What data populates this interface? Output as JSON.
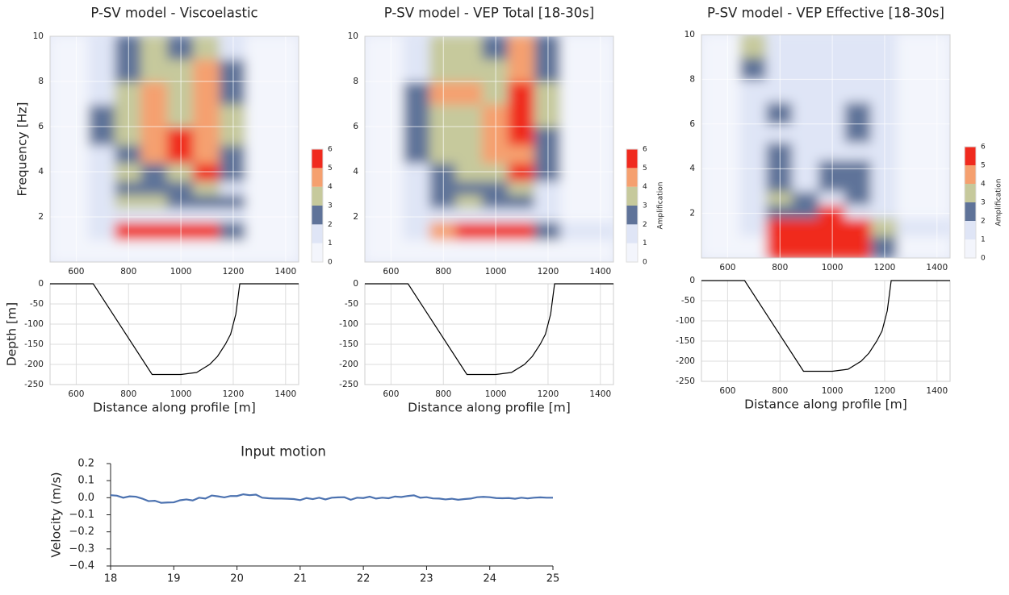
{
  "chart_data": [
    {
      "type": "heatmap",
      "title": "P-SV model - Viscoelastic",
      "ylabel": "Frequency [Hz]",
      "x_bins": [
        500,
        650,
        750,
        850,
        950,
        1050,
        1150,
        1250,
        1450
      ],
      "y_bins": [
        0,
        1,
        1.8,
        2.4,
        3,
        3.6,
        4.4,
        5.2,
        6,
        7,
        8,
        9,
        10
      ],
      "z": [
        [
          0.5,
          0.5,
          0.8,
          0.8,
          0.8,
          0.8,
          0.6,
          0.5
        ],
        [
          0.8,
          1.5,
          5.5,
          6,
          6,
          5.5,
          2,
          0.8
        ],
        [
          0.7,
          1,
          1.5,
          1.5,
          1.5,
          1.5,
          1,
          0.7
        ],
        [
          0.7,
          1,
          3,
          3.5,
          2,
          2.5,
          2.5,
          0.7
        ],
        [
          0.7,
          1,
          2,
          2,
          2.5,
          3,
          1.5,
          0.7
        ],
        [
          0.7,
          1.5,
          3,
          2.5,
          3.5,
          5.5,
          2.5,
          0.7
        ],
        [
          0.7,
          1.5,
          2.5,
          4,
          5,
          4.5,
          2,
          0.7
        ],
        [
          0.7,
          2,
          3,
          4,
          5.5,
          4,
          3,
          0.7
        ],
        [
          0.7,
          2,
          3.5,
          4,
          3.5,
          4.5,
          3,
          0.7
        ],
        [
          0.7,
          1.5,
          3,
          4.5,
          3,
          4,
          2.5,
          0.7
        ],
        [
          0.7,
          1,
          2.5,
          3.5,
          3,
          4,
          2,
          0.7
        ],
        [
          0.7,
          1,
          2,
          3,
          2.5,
          3.5,
          1.5,
          0.7
        ]
      ],
      "xlim": [
        500,
        1450
      ],
      "ylim": [
        0,
        10
      ],
      "xticks": [
        600,
        800,
        1000,
        1200,
        1400
      ],
      "yticks": [
        2,
        4,
        6,
        8,
        10
      ],
      "colorbar": {
        "ticks": [
          0,
          1,
          2,
          3,
          4,
          5,
          6
        ],
        "colors": [
          "#f3f5fc",
          "#dfe5f6",
          "#5f7399",
          "#c6c99c",
          "#f5a06f",
          "#f02a1e"
        ]
      }
    },
    {
      "type": "line",
      "ylabel": "Depth [m]",
      "xlabel": "Distance along profile [m]",
      "x": [
        500,
        665,
        890,
        1000,
        1060,
        1110,
        1140,
        1170,
        1190,
        1200,
        1210,
        1215,
        1220,
        1225,
        1450
      ],
      "values": [
        0,
        0,
        -225,
        -225,
        -220,
        -200,
        -180,
        -150,
        -125,
        -100,
        -75,
        -50,
        -25,
        0,
        0
      ],
      "color": "#000000",
      "xlim": [
        500,
        1450
      ],
      "ylim": [
        -250,
        0
      ],
      "xticks": [
        600,
        800,
        1000,
        1200,
        1400
      ],
      "yticks": [
        0,
        -50,
        -100,
        -150,
        -200,
        -250
      ],
      "grid": true
    },
    {
      "type": "heatmap",
      "title": "P-SV model - VEP Total [18-30s]",
      "x_bins": [
        500,
        650,
        750,
        850,
        950,
        1050,
        1150,
        1250,
        1450
      ],
      "y_bins": [
        0,
        1,
        1.8,
        2.4,
        3,
        3.6,
        4.4,
        5.2,
        6,
        7,
        8,
        9,
        10
      ],
      "z": [
        [
          0.5,
          0.5,
          0.8,
          0.8,
          0.8,
          0.8,
          0.8,
          0.6
        ],
        [
          0.8,
          1.5,
          4.5,
          5.5,
          5.5,
          5,
          2,
          1.2
        ],
        [
          0.7,
          1,
          1.5,
          1.5,
          1.5,
          1.5,
          1,
          0.7
        ],
        [
          0.7,
          1.5,
          2.5,
          3,
          2.5,
          2.5,
          1.5,
          0.7
        ],
        [
          0.7,
          1.5,
          2,
          2.5,
          2.5,
          3.5,
          1.5,
          0.7
        ],
        [
          0.7,
          1.5,
          2.5,
          3,
          3.5,
          5,
          2,
          0.7
        ],
        [
          0.7,
          2,
          3,
          3.5,
          4,
          4.5,
          2,
          0.7
        ],
        [
          0.7,
          2,
          3,
          3.5,
          4,
          5,
          2.5,
          0.7
        ],
        [
          0.7,
          2,
          3.5,
          3.5,
          4,
          5.5,
          3,
          0.7
        ],
        [
          0.7,
          2,
          4,
          4.5,
          3.5,
          5,
          3,
          0.7
        ],
        [
          0.7,
          1.5,
          3.5,
          3.5,
          3,
          4.5,
          2.5,
          0.7
        ],
        [
          0.7,
          1.5,
          3,
          3,
          2.5,
          4,
          2,
          0.7
        ]
      ],
      "xlim": [
        500,
        1450
      ],
      "ylim": [
        0,
        10
      ],
      "xticks": [
        600,
        800,
        1000,
        1200,
        1400
      ],
      "yticks": [
        2,
        4,
        6,
        8,
        10
      ],
      "colorbar": {
        "ticks": [
          0,
          1,
          2,
          3,
          4,
          5,
          6
        ],
        "colors": [
          "#f3f5fc",
          "#dfe5f6",
          "#5f7399",
          "#c6c99c",
          "#f5a06f",
          "#f02a1e"
        ],
        "label": "Amplification"
      }
    },
    {
      "type": "line",
      "xlabel": "Distance along profile [m]",
      "x": [
        500,
        665,
        890,
        1000,
        1060,
        1110,
        1140,
        1170,
        1190,
        1200,
        1210,
        1215,
        1220,
        1225,
        1450
      ],
      "values": [
        0,
        0,
        -225,
        -225,
        -220,
        -200,
        -180,
        -150,
        -125,
        -100,
        -75,
        -50,
        -25,
        0,
        0
      ],
      "color": "#000000",
      "xlim": [
        500,
        1450
      ],
      "ylim": [
        -250,
        0
      ],
      "xticks": [
        600,
        800,
        1000,
        1200,
        1400
      ],
      "yticks": [
        0,
        -50,
        -100,
        -150,
        -200,
        -250
      ],
      "grid": true
    },
    {
      "type": "heatmap",
      "title": "P-SV model - VEP Effective [18-30s]",
      "x_bins": [
        500,
        650,
        750,
        850,
        950,
        1050,
        1150,
        1250,
        1450
      ],
      "y_bins": [
        0,
        1,
        1.8,
        2.4,
        3,
        3.6,
        4.4,
        5.2,
        6,
        7,
        8,
        9,
        10
      ],
      "z": [
        [
          0.5,
          0.5,
          5,
          5.5,
          6,
          5.5,
          2,
          0.5
        ],
        [
          0.5,
          1.5,
          5.5,
          5.5,
          5,
          5.5,
          3,
          1
        ],
        [
          0.5,
          1,
          2,
          2,
          5.5,
          1.5,
          1.5,
          0.5
        ],
        [
          0.5,
          1,
          3,
          2,
          1.5,
          2,
          1,
          0.5
        ],
        [
          0.5,
          1,
          2,
          1.5,
          2,
          2.5,
          1.5,
          0.5
        ],
        [
          0.5,
          1.5,
          2,
          1.5,
          2,
          2,
          1.5,
          0.5
        ],
        [
          0.5,
          1.5,
          2,
          1,
          1,
          1.5,
          1.5,
          0.5
        ],
        [
          0.5,
          1.5,
          1.5,
          1,
          1,
          2,
          1.5,
          0.5
        ],
        [
          0.5,
          1.5,
          2,
          1,
          1,
          2.5,
          1,
          0.5
        ],
        [
          0.5,
          1.5,
          1.5,
          1,
          1,
          1.5,
          1,
          0.5
        ],
        [
          0.5,
          2,
          1.5,
          1,
          1,
          1,
          1,
          0.5
        ],
        [
          0.5,
          3.5,
          1.5,
          1,
          1,
          1,
          1,
          0.5
        ]
      ],
      "xlim": [
        500,
        1450
      ],
      "ylim": [
        0,
        10
      ],
      "xticks": [
        600,
        800,
        1000,
        1200,
        1400
      ],
      "yticks": [
        2,
        4,
        6,
        8,
        10
      ],
      "colorbar": {
        "ticks": [
          0,
          1,
          2,
          3,
          4,
          5,
          6
        ],
        "colors": [
          "#f3f5fc",
          "#dfe5f6",
          "#5f7399",
          "#c6c99c",
          "#f5a06f",
          "#f02a1e"
        ],
        "label": "Amplification"
      }
    },
    {
      "type": "line",
      "xlabel": "Distance along profile [m]",
      "x": [
        500,
        665,
        890,
        1000,
        1060,
        1110,
        1140,
        1170,
        1190,
        1200,
        1210,
        1215,
        1220,
        1225,
        1450
      ],
      "values": [
        0,
        0,
        -225,
        -225,
        -220,
        -200,
        -180,
        -150,
        -125,
        -100,
        -75,
        -50,
        -25,
        0,
        0
      ],
      "color": "#000000",
      "xlim": [
        500,
        1450
      ],
      "ylim": [
        -250,
        0
      ],
      "xticks": [
        600,
        800,
        1000,
        1200,
        1400
      ],
      "yticks": [
        0,
        -50,
        -100,
        -150,
        -200,
        -250
      ],
      "grid": true
    },
    {
      "type": "line",
      "title": "Input motion",
      "ylabel": "Velocity (m/s)",
      "x": [
        18,
        18.1,
        18.2,
        18.3,
        18.4,
        18.5,
        18.6,
        18.7,
        18.8,
        18.9,
        19,
        19.1,
        19.2,
        19.3,
        19.4,
        19.5,
        19.6,
        19.7,
        19.8,
        19.9,
        20,
        20.1,
        20.2,
        20.3,
        20.4,
        20.5,
        20.6,
        20.7,
        20.8,
        20.9,
        21,
        21.1,
        21.2,
        21.3,
        21.4,
        21.5,
        21.6,
        21.7,
        21.8,
        21.9,
        22,
        22.1,
        22.2,
        22.3,
        22.4,
        22.5,
        22.6,
        22.7,
        22.8,
        22.9,
        23,
        23.1,
        23.2,
        23.3,
        23.4,
        23.5,
        23.6,
        23.7,
        23.8,
        23.9,
        24,
        24.1,
        24.2,
        24.3,
        24.4,
        24.5,
        24.6,
        24.7,
        24.8,
        24.9,
        25
      ],
      "values": [
        0.015,
        0.012,
        0,
        0.008,
        0.006,
        -0.005,
        -0.02,
        -0.018,
        -0.03,
        -0.028,
        -0.027,
        -0.015,
        -0.01,
        -0.016,
        0,
        -0.005,
        0.013,
        0.008,
        0.002,
        0.01,
        0.01,
        0.02,
        0.015,
        0.018,
        0,
        -0.003,
        -0.005,
        -0.005,
        -0.006,
        -0.008,
        -0.014,
        -0.002,
        -0.008,
        0,
        -0.01,
        0,
        0.002,
        0.003,
        -0.012,
        0,
        -0.002,
        0.006,
        -0.005,
        0,
        -0.003,
        0.007,
        0.004,
        0.01,
        0.014,
        0,
        0.003,
        -0.004,
        -0.005,
        -0.01,
        -0.006,
        -0.012,
        -0.008,
        -0.005,
        0.003,
        0.005,
        0.003,
        -0.002,
        -0.003,
        -0.002,
        -0.006,
        0,
        -0.004,
        0,
        0.002,
        0,
        0
      ],
      "color": "#4c72b0",
      "xlim": [
        18,
        25
      ],
      "ylim": [
        -0.4,
        0.2
      ],
      "xticks": [
        18,
        19,
        20,
        21,
        22,
        23,
        24,
        25
      ],
      "yticks": [
        {
          "value": 0.2,
          "label": "0.2"
        },
        {
          "value": 0.1,
          "label": "0.1"
        },
        {
          "value": 0,
          "label": "0.0"
        },
        {
          "value": -0.1,
          "label": "−0.1"
        },
        {
          "value": -0.2,
          "label": "−0.2"
        },
        {
          "value": -0.3,
          "label": "−0.3"
        },
        {
          "value": -0.4,
          "label": "−0.4"
        }
      ]
    }
  ]
}
